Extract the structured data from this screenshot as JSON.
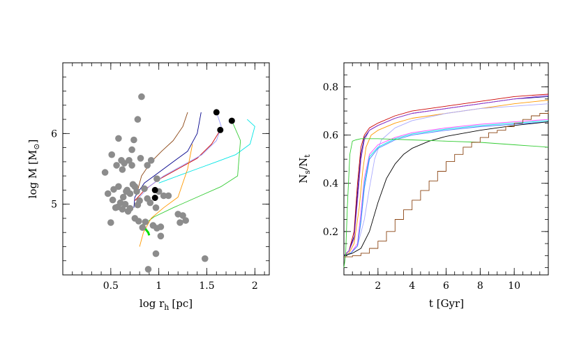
{
  "chart_data": [
    {
      "type": "scatter",
      "xlabel": "log r",
      "xlabel_sub": "h",
      "xlabel_unit": "[pc]",
      "ylabel": "log M [M",
      "ylabel_sub": "⊙",
      "ylabel_close": "]",
      "xlim": [
        0.0,
        2.15
      ],
      "ylim": [
        4.0,
        7.0
      ],
      "xticks": [
        0.5,
        1,
        1.5,
        2
      ],
      "xtick_labels": [
        "0.5",
        "1",
        "1.5",
        "2"
      ],
      "yticks": [
        5,
        6
      ],
      "ytick_labels": [
        "5",
        "6"
      ],
      "observed_points": {
        "color": "#8c8c8c",
        "x": [
          0.82,
          0.78,
          0.74,
          0.58,
          0.72,
          0.44,
          0.51,
          0.56,
          0.61,
          0.64,
          0.69,
          0.72,
          0.75,
          0.62,
          0.53,
          0.66,
          0.7,
          0.47,
          0.58,
          0.63,
          0.67,
          0.73,
          0.77,
          0.8,
          0.85,
          0.88,
          0.91,
          0.97,
          1.0,
          1.05,
          1.1,
          0.52,
          0.57,
          0.62,
          0.68,
          0.75,
          0.79,
          0.83,
          0.86,
          0.94,
          1.02,
          0.5,
          0.55,
          0.6,
          0.65,
          0.7,
          0.78,
          0.92,
          0.98,
          1.2,
          1.22,
          1.25,
          1.28,
          0.81,
          0.88,
          0.98,
          1.02,
          1.48,
          0.89,
          0.97
        ],
        "y": [
          6.52,
          6.2,
          5.91,
          5.93,
          5.77,
          5.45,
          5.7,
          5.55,
          5.62,
          5.58,
          5.62,
          5.55,
          5.25,
          5.49,
          5.21,
          5.18,
          5.15,
          5.15,
          5.25,
          5.1,
          5.2,
          5.28,
          5.18,
          5.05,
          5.22,
          5.08,
          5.02,
          4.95,
          5.18,
          5.12,
          5.12,
          5.06,
          4.96,
          4.93,
          4.9,
          4.8,
          4.76,
          4.67,
          4.75,
          4.7,
          4.68,
          4.74,
          4.95,
          5.02,
          5.0,
          4.94,
          4.99,
          5.62,
          5.36,
          4.86,
          4.74,
          4.84,
          4.77,
          5.65,
          5.55,
          4.66,
          4.55,
          4.23,
          4.08,
          4.3
        ]
      },
      "model_endpoints": {
        "color": "#000000",
        "x": [
          1.6,
          1.64,
          1.76,
          0.96,
          0.96
        ],
        "y": [
          6.3,
          6.05,
          6.18,
          5.2,
          5.09
        ]
      },
      "series": [
        {
          "color": "#8b4513",
          "x": [
            1.3,
            1.25,
            1.15,
            1.03,
            0.92,
            0.82,
            0.78
          ],
          "y": [
            6.3,
            6.1,
            5.9,
            5.75,
            5.6,
            5.4,
            5.2
          ]
        },
        {
          "color": "#00008b",
          "x": [
            1.44,
            1.4,
            1.3,
            1.15,
            1.0,
            0.85,
            0.75,
            0.74
          ],
          "y": [
            6.3,
            6.0,
            5.75,
            5.6,
            5.45,
            5.3,
            5.1,
            4.95
          ]
        },
        {
          "color": "#cc0000",
          "x": [
            1.64,
            1.55,
            1.4,
            1.2,
            1.0,
            0.85,
            0.75
          ],
          "y": [
            6.05,
            5.85,
            5.65,
            5.5,
            5.35,
            5.2,
            5.05
          ]
        },
        {
          "color": "#9999ff",
          "x": [
            1.6,
            1.65,
            1.6,
            1.45,
            1.25,
            1.05,
            0.9,
            0.8
          ],
          "y": [
            6.3,
            6.1,
            5.9,
            5.7,
            5.55,
            5.4,
            5.25,
            5.1
          ]
        },
        {
          "color": "#00e5e5",
          "x": [
            1.92,
            2.0,
            1.95,
            1.8,
            1.6,
            1.4,
            1.2,
            1.0
          ],
          "y": [
            6.2,
            6.1,
            5.85,
            5.7,
            5.6,
            5.5,
            5.4,
            5.3
          ]
        },
        {
          "color": "#33cc33",
          "x": [
            1.76,
            1.85,
            1.82,
            1.65,
            1.4,
            1.15,
            0.95,
            0.85,
            0.82
          ],
          "y": [
            6.18,
            5.9,
            5.4,
            5.25,
            5.1,
            4.95,
            4.82,
            4.72,
            4.65
          ]
        },
        {
          "color": "#ff9900",
          "x": [
            1.35,
            1.3,
            1.2,
            1.05,
            0.92,
            0.84,
            0.8
          ],
          "y": [
            5.85,
            5.5,
            5.1,
            4.95,
            4.8,
            4.6,
            4.4
          ]
        },
        {
          "color": "#00dd00",
          "width": 3,
          "x": [
            0.83,
            0.86,
            0.89,
            0.9
          ],
          "y": [
            4.72,
            4.65,
            4.6,
            4.56
          ]
        }
      ]
    },
    {
      "type": "line",
      "xlabel": "t [Gyr]",
      "ylabel": "N",
      "ylabel_sub1": "s",
      "ylabel_mid": "/N",
      "ylabel_sub2": "t",
      "xlim": [
        0,
        12
      ],
      "ylim": [
        0.02,
        0.9
      ],
      "xticks": [
        2,
        4,
        6,
        8,
        10
      ],
      "xtick_labels": [
        "2",
        "4",
        "6",
        "8",
        "10"
      ],
      "yticks": [
        0.2,
        0.4,
        0.6,
        0.8
      ],
      "ytick_labels": [
        "0.2",
        "0.4",
        "0.6",
        "0.8"
      ],
      "series": [
        {
          "color": "#cc0000",
          "x": [
            0,
            0.3,
            0.6,
            0.8,
            1.0,
            1.2,
            1.5,
            2,
            3,
            4,
            6,
            8,
            10,
            12
          ],
          "y": [
            0.1,
            0.12,
            0.2,
            0.4,
            0.55,
            0.6,
            0.63,
            0.65,
            0.68,
            0.7,
            0.72,
            0.74,
            0.76,
            0.77
          ]
        },
        {
          "color": "#00008b",
          "x": [
            0,
            0.3,
            0.6,
            0.8,
            1.0,
            1.2,
            1.5,
            2,
            3,
            4,
            6,
            8,
            10,
            12
          ],
          "y": [
            0.1,
            0.12,
            0.18,
            0.36,
            0.52,
            0.59,
            0.62,
            0.64,
            0.67,
            0.69,
            0.71,
            0.73,
            0.75,
            0.76
          ]
        },
        {
          "color": "#9933cc",
          "x": [
            0,
            0.3,
            0.6,
            0.8,
            1.0,
            1.2,
            1.5,
            2,
            3,
            4,
            6,
            8,
            10,
            12
          ],
          "y": [
            0.1,
            0.12,
            0.17,
            0.33,
            0.5,
            0.58,
            0.62,
            0.64,
            0.67,
            0.69,
            0.71,
            0.73,
            0.75,
            0.765
          ]
        },
        {
          "color": "#ff9900",
          "x": [
            0,
            0.3,
            0.6,
            0.9,
            1.1,
            1.3,
            1.6,
            2,
            3,
            4,
            6,
            8,
            10,
            12
          ],
          "y": [
            0.1,
            0.11,
            0.15,
            0.3,
            0.45,
            0.55,
            0.6,
            0.62,
            0.65,
            0.67,
            0.69,
            0.71,
            0.73,
            0.745
          ]
        },
        {
          "color": "#aaaaff",
          "x": [
            0,
            0.4,
            0.8,
            1.2,
            1.5,
            1.8,
            2.2,
            3,
            4,
            6,
            8,
            10,
            12
          ],
          "y": [
            0.1,
            0.11,
            0.14,
            0.25,
            0.38,
            0.5,
            0.58,
            0.63,
            0.66,
            0.69,
            0.71,
            0.72,
            0.73
          ]
        },
        {
          "color": "#ff44ff",
          "x": [
            0,
            0.4,
            0.8,
            1.0,
            1.2,
            1.5,
            2,
            3,
            4,
            6,
            8,
            10,
            12
          ],
          "y": [
            0.1,
            0.11,
            0.15,
            0.28,
            0.42,
            0.52,
            0.56,
            0.59,
            0.61,
            0.63,
            0.645,
            0.655,
            0.665
          ]
        },
        {
          "color": "#00e5e5",
          "x": [
            0,
            0.4,
            0.8,
            1.0,
            1.2,
            1.5,
            2,
            3,
            4,
            6,
            8,
            10,
            12
          ],
          "y": [
            0.1,
            0.11,
            0.14,
            0.25,
            0.4,
            0.51,
            0.55,
            0.585,
            0.605,
            0.625,
            0.64,
            0.65,
            0.66
          ]
        },
        {
          "color": "#4477ff",
          "x": [
            0,
            0.4,
            0.8,
            1.0,
            1.2,
            1.5,
            2,
            3,
            4,
            6,
            8,
            10,
            12
          ],
          "y": [
            0.1,
            0.11,
            0.14,
            0.24,
            0.38,
            0.5,
            0.545,
            0.58,
            0.6,
            0.62,
            0.635,
            0.645,
            0.655
          ]
        },
        {
          "color": "#000000",
          "x": [
            0,
            0.5,
            1.0,
            1.5,
            2.0,
            2.5,
            3,
            3.5,
            4,
            5,
            6,
            8,
            10,
            12
          ],
          "y": [
            0.1,
            0.11,
            0.13,
            0.2,
            0.32,
            0.42,
            0.48,
            0.52,
            0.545,
            0.575,
            0.595,
            0.62,
            0.64,
            0.655
          ]
        },
        {
          "color": "#33cc33",
          "x": [
            0,
            0.1,
            0.2,
            0.35,
            0.5,
            0.7,
            1,
            2,
            4,
            6,
            8,
            10,
            12
          ],
          "y": [
            0.05,
            0.1,
            0.3,
            0.52,
            0.575,
            0.58,
            0.585,
            0.585,
            0.58,
            0.575,
            0.57,
            0.56,
            0.55
          ]
        },
        {
          "color": "#8b4513",
          "stepped": true,
          "x": [
            0,
            0.5,
            1.0,
            1.5,
            2.0,
            2.5,
            3.0,
            3.5,
            4.0,
            4.5,
            5.0,
            5.5,
            6.0,
            6.5,
            7.0,
            7.5,
            8.0,
            8.5,
            9.0,
            9.5,
            10.0,
            10.5,
            11.0,
            11.5,
            12.0
          ],
          "y": [
            0.095,
            0.1,
            0.11,
            0.13,
            0.16,
            0.2,
            0.25,
            0.29,
            0.33,
            0.37,
            0.41,
            0.45,
            0.49,
            0.52,
            0.55,
            0.57,
            0.59,
            0.61,
            0.62,
            0.635,
            0.65,
            0.665,
            0.68,
            0.69,
            0.7
          ]
        }
      ]
    }
  ]
}
